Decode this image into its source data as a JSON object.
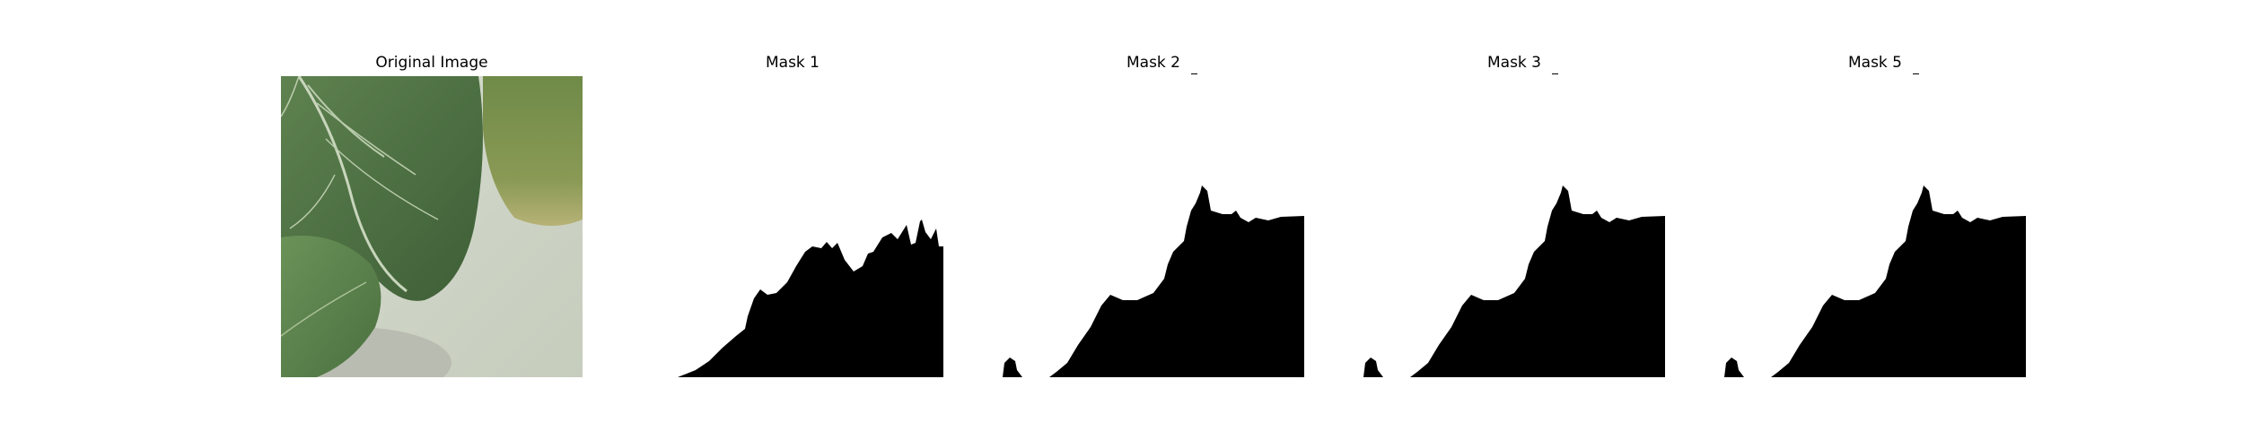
{
  "panels": [
    {
      "title": "Original Image"
    },
    {
      "title": "Mask 1"
    },
    {
      "title": "Mask 2"
    },
    {
      "title": "Mask 3"
    },
    {
      "title": "Mask 5"
    }
  ],
  "colors": {
    "mask_fill": "#000000",
    "background": "#ffffff"
  }
}
